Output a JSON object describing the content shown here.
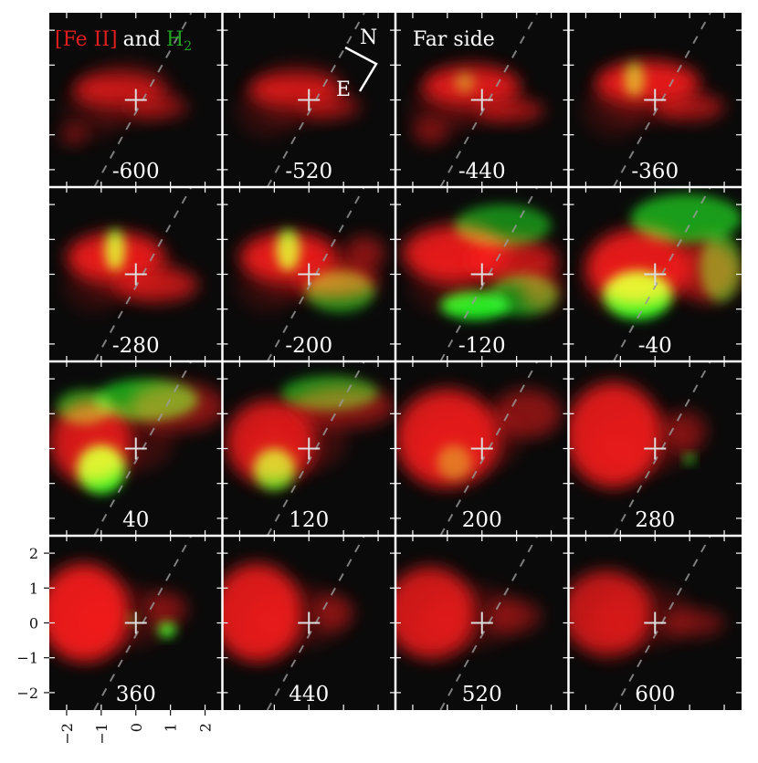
{
  "figure": {
    "title": {
      "fe": "[Fe II]",
      "and": "and",
      "h2_main": "H",
      "h2_sub": "2"
    },
    "compass": {
      "north": "N",
      "east": "E"
    },
    "far_side_label": "Far side",
    "colors": {
      "fe_emission": "#ff1a1a",
      "h2_emission": "#1aff1a",
      "background": "#0a0a0a",
      "grid_lines": "#ffffff"
    }
  },
  "chart_data": {
    "type": "heatmap",
    "panel_velocities": [
      "-600",
      "-520",
      "-440",
      "-360",
      "-280",
      "-200",
      "-120",
      "-40",
      "40",
      "120",
      "200",
      "280",
      "360",
      "440",
      "520",
      "600"
    ],
    "grid": {
      "rows": 4,
      "cols": 4
    },
    "axes": {
      "xlim": [
        -2.5,
        2.5
      ],
      "ylim": [
        -2.5,
        2.5
      ],
      "x_tick_labels": [
        "−2",
        "−1",
        "0",
        "1",
        "2"
      ],
      "y_tick_labels": [
        "2",
        "1",
        "0",
        "−1",
        "−2"
      ],
      "x_ticks": [
        -2,
        -1,
        0,
        1,
        2
      ],
      "y_ticks": [
        2,
        1,
        0,
        -1,
        -2
      ]
    },
    "series": [
      {
        "name": "[Fe II]",
        "color": "red"
      },
      {
        "name": "H2",
        "color": "green"
      }
    ],
    "center_marker": [
      0,
      0
    ],
    "dashed_line": {
      "from": [
        -1.2,
        -2.5
      ],
      "to": [
        1.6,
        2.5
      ]
    }
  }
}
